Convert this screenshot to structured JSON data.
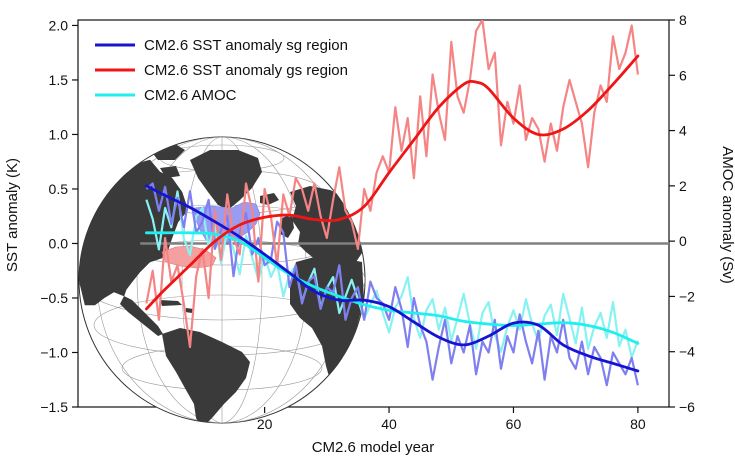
{
  "chart_data": {
    "type": "line",
    "xlabel": "CM2.6 model year",
    "ylabel_left": "SST anomaly (K)",
    "ylabel_right": "AMOC anomaly (Sv)",
    "xlim": [
      -10,
      85
    ],
    "ylim_left": [
      -1.5,
      2.05
    ],
    "ylim_right": [
      -6,
      8
    ],
    "x_ticks": [
      20,
      40,
      60,
      80
    ],
    "y_ticks_left": [
      2.0,
      1.5,
      1.0,
      0.5,
      0.0,
      -0.5,
      -1.0,
      -1.5
    ],
    "y_ticks_left_labels": [
      "2.0",
      "1.5",
      "1.0",
      "0.5",
      "0.0",
      "−0.5",
      "−1.0",
      "−1.5"
    ],
    "y_ticks_right": [
      8,
      6,
      4,
      2,
      0,
      -2,
      -4,
      -6
    ],
    "y_ticks_right_labels": [
      "8",
      "6",
      "4",
      "2",
      "0",
      "−2",
      "−4",
      "−6"
    ],
    "zero_line": 0,
    "legend_position": "top-left",
    "inset_map": "globe with shaded sg region (blue, subpolar North Atlantic) and gs region (red, Gulf Stream)",
    "colors": {
      "sg_smooth": "#1515d0",
      "sg_raw": "#7f7ff0",
      "gs_smooth": "#ee1515",
      "gs_raw": "#f58585",
      "amoc_smooth": "#22eeee",
      "amoc_raw": "#88f2f2",
      "zero_line": "#808080",
      "land": "#3a3a3a",
      "ocean": "#ffffff"
    },
    "series": [
      {
        "name": "CM2.6 SST anomaly sg region",
        "axis": "left",
        "smooth": {
          "x": [
            1,
            4,
            8,
            12,
            16,
            20,
            24,
            28,
            32,
            36,
            40,
            44,
            48,
            52,
            56,
            60,
            64,
            68,
            72,
            76,
            80
          ],
          "y": [
            0.53,
            0.44,
            0.33,
            0.2,
            0.06,
            -0.1,
            -0.27,
            -0.44,
            -0.52,
            -0.52,
            -0.58,
            -0.72,
            -0.86,
            -0.93,
            -0.85,
            -0.73,
            -0.75,
            -0.93,
            -1.03,
            -1.1,
            -1.17
          ]
        },
        "raw": {
          "x": [
            1,
            2,
            3,
            4,
            5,
            6,
            7,
            8,
            9,
            10,
            11,
            12,
            13,
            14,
            15,
            16,
            17,
            18,
            19,
            20,
            21,
            22,
            23,
            24,
            25,
            26,
            27,
            28,
            29,
            30,
            31,
            32,
            33,
            34,
            35,
            36,
            37,
            38,
            39,
            40,
            41,
            42,
            43,
            44,
            45,
            46,
            47,
            48,
            49,
            50,
            51,
            52,
            53,
            54,
            55,
            56,
            57,
            58,
            59,
            60,
            61,
            62,
            63,
            64,
            65,
            66,
            67,
            68,
            69,
            70,
            71,
            72,
            73,
            74,
            75,
            76,
            77,
            78,
            79,
            80
          ],
          "y": [
            0.5,
            0.55,
            0.3,
            0.52,
            0.18,
            0.42,
            0.15,
            0.48,
            0.1,
            0.2,
            0.4,
            -0.05,
            0.12,
            0.25,
            -0.3,
            0.1,
            0.28,
            -0.1,
            0.05,
            -0.2,
            -0.15,
            0.2,
            0.1,
            -0.4,
            -0.2,
            -0.55,
            -0.35,
            -0.3,
            -0.6,
            -0.4,
            -0.45,
            -0.2,
            -0.7,
            -0.5,
            -0.4,
            -0.7,
            -0.35,
            -0.5,
            -0.55,
            -0.7,
            -0.4,
            -0.6,
            -0.95,
            -0.5,
            -0.75,
            -0.9,
            -1.25,
            -0.95,
            -0.7,
            -1.1,
            -0.85,
            -1.0,
            -0.75,
            -1.2,
            -0.9,
            -1.0,
            -0.7,
            -1.15,
            -0.85,
            -1.0,
            -0.65,
            -0.9,
            -1.1,
            -0.8,
            -1.25,
            -0.85,
            -1.0,
            -0.7,
            -1.05,
            -1.15,
            -0.9,
            -1.2,
            -0.95,
            -1.05,
            -1.3,
            -1.0,
            -1.1,
            -1.2,
            -1.05,
            -1.3
          ]
        }
      },
      {
        "name": "CM2.6 SST anomaly gs region",
        "axis": "left",
        "smooth": {
          "x": [
            1,
            4,
            8,
            12,
            16,
            20,
            24,
            28,
            32,
            36,
            40,
            44,
            48,
            52,
            54,
            56,
            60,
            64,
            68,
            72,
            76,
            80
          ],
          "y": [
            -0.6,
            -0.42,
            -0.2,
            0.02,
            0.17,
            0.24,
            0.26,
            0.22,
            0.22,
            0.34,
            0.65,
            0.95,
            1.25,
            1.46,
            1.48,
            1.42,
            1.15,
            1.0,
            1.05,
            1.22,
            1.46,
            1.72
          ]
        },
        "raw": {
          "x": [
            1,
            2,
            3,
            4,
            5,
            6,
            7,
            8,
            9,
            10,
            11,
            12,
            13,
            14,
            15,
            16,
            17,
            18,
            19,
            20,
            21,
            22,
            23,
            24,
            25,
            26,
            27,
            28,
            29,
            30,
            31,
            32,
            33,
            34,
            35,
            36,
            37,
            38,
            39,
            40,
            41,
            42,
            43,
            44,
            45,
            46,
            47,
            48,
            49,
            50,
            51,
            52,
            53,
            54,
            55,
            56,
            57,
            58,
            59,
            60,
            61,
            62,
            63,
            64,
            65,
            66,
            67,
            68,
            69,
            70,
            71,
            72,
            73,
            74,
            75,
            76,
            77,
            78,
            79,
            80
          ],
          "y": [
            -0.55,
            -0.25,
            -0.7,
            0.05,
            -0.35,
            -0.2,
            -0.55,
            -0.95,
            -0.3,
            -0.05,
            -0.5,
            0.3,
            -0.15,
            0.45,
            0.05,
            -0.1,
            0.55,
            0.3,
            -0.35,
            0.5,
            0.25,
            -0.2,
            0.45,
            0.25,
            0.6,
            0.5,
            0.3,
            0.55,
            0.25,
            0.05,
            0.4,
            0.7,
            0.3,
            0.2,
            -0.05,
            0.5,
            0.3,
            0.65,
            0.8,
            0.65,
            1.25,
            0.85,
            1.15,
            0.6,
            1.35,
            0.8,
            1.55,
            1.2,
            0.95,
            1.85,
            1.35,
            1.2,
            1.5,
            1.95,
            2.05,
            1.6,
            1.75,
            0.9,
            1.3,
            1.1,
            1.45,
            0.95,
            1.15,
            1.05,
            0.75,
            1.1,
            0.85,
            1.25,
            1.5,
            1.3,
            1.1,
            0.7,
            1.2,
            1.45,
            1.3,
            1.9,
            1.6,
            1.75,
            2.0,
            1.55
          ]
        }
      },
      {
        "name": "CM2.6 AMOC",
        "axis": "right",
        "smooth": {
          "x": [
            1,
            4,
            8,
            12,
            16,
            20,
            24,
            28,
            32,
            36,
            40,
            44,
            48,
            52,
            56,
            60,
            64,
            68,
            72,
            76,
            80
          ],
          "y": [
            0.3,
            0.3,
            0.3,
            0.25,
            0.0,
            -0.6,
            -1.2,
            -1.65,
            -2.0,
            -2.3,
            -2.5,
            -2.6,
            -2.7,
            -2.9,
            -3.0,
            -3.05,
            -3.0,
            -2.95,
            -3.05,
            -3.3,
            -3.7
          ]
        },
        "raw": {
          "x": [
            1,
            2,
            3,
            4,
            5,
            6,
            7,
            8,
            9,
            10,
            11,
            12,
            13,
            14,
            15,
            16,
            17,
            18,
            19,
            20,
            21,
            22,
            23,
            24,
            25,
            26,
            27,
            28,
            29,
            30,
            31,
            32,
            33,
            34,
            35,
            36,
            37,
            38,
            39,
            40,
            41,
            42,
            43,
            44,
            45,
            46,
            47,
            48,
            49,
            50,
            51,
            52,
            53,
            54,
            55,
            56,
            57,
            58,
            59,
            60,
            61,
            62,
            63,
            64,
            65,
            66,
            67,
            68,
            69,
            70,
            71,
            72,
            73,
            74,
            75,
            76,
            77,
            78,
            79,
            80
          ],
          "y": [
            1.5,
            0.8,
            -0.3,
            1.2,
            0.5,
            1.8,
            0.1,
            -0.5,
            0.9,
            1.2,
            -0.2,
            0.6,
            -0.8,
            0.4,
            -0.3,
            -1.2,
            0.2,
            -0.6,
            -1.4,
            -0.5,
            -1.3,
            -0.8,
            -2.0,
            -1.2,
            -0.9,
            -2.2,
            -1.5,
            -1.0,
            -2.4,
            -1.7,
            -1.3,
            -2.6,
            -2.0,
            -1.4,
            -2.1,
            -2.8,
            -2.3,
            -1.8,
            -2.6,
            -3.3,
            -2.4,
            -2.0,
            -1.3,
            -2.8,
            -3.5,
            -2.5,
            -2.1,
            -3.2,
            -2.4,
            -3.6,
            -2.8,
            -1.9,
            -3.0,
            -3.9,
            -2.6,
            -2.2,
            -3.4,
            -4.0,
            -3.1,
            -2.5,
            -3.2,
            -2.1,
            -3.0,
            -3.6,
            -2.7,
            -2.3,
            -3.4,
            -1.9,
            -2.8,
            -3.7,
            -2.4,
            -3.9,
            -3.1,
            -2.6,
            -3.5,
            -2.2,
            -3.8,
            -3.2,
            -4.2,
            -3.6
          ]
        }
      }
    ],
    "legend": [
      {
        "label": "CM2.6 SST anomaly sg region",
        "color": "#1515d0"
      },
      {
        "label": "CM2.6 SST anomaly gs region",
        "color": "#ee1515"
      },
      {
        "label": "CM2.6 AMOC",
        "color": "#22eeee"
      }
    ]
  }
}
